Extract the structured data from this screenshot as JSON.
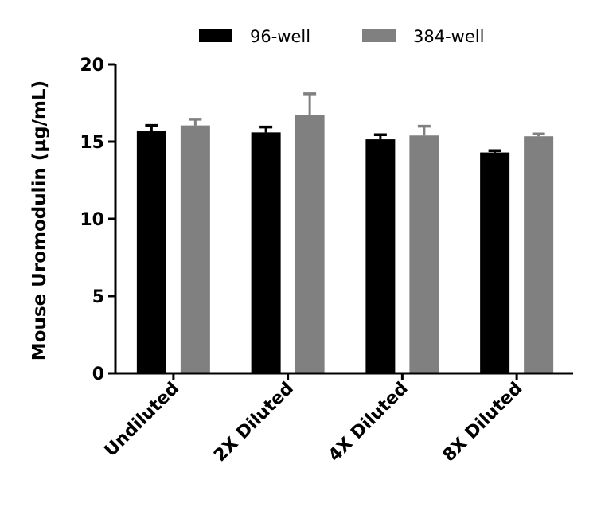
{
  "chart_data": {
    "type": "bar",
    "title": "",
    "xlabel": "",
    "ylabel": "Mouse Uromodulin (µg/mL)",
    "ylim": [
      0,
      20
    ],
    "yticks": [
      0,
      5,
      10,
      15,
      20
    ],
    "grid": false,
    "legend_position": "top",
    "categories": [
      "Undiluted",
      "2X Diluted",
      "4X Diluted",
      "8X Diluted"
    ],
    "series": [
      {
        "name": "96-well",
        "color": "#000000",
        "values": [
          15.7,
          15.6,
          15.15,
          14.3
        ],
        "error": [
          0.35,
          0.35,
          0.3,
          0.12
        ]
      },
      {
        "name": "384-well",
        "color": "#808080",
        "values": [
          16.05,
          16.75,
          15.4,
          15.35
        ],
        "error": [
          0.4,
          1.35,
          0.6,
          0.15
        ]
      }
    ]
  }
}
